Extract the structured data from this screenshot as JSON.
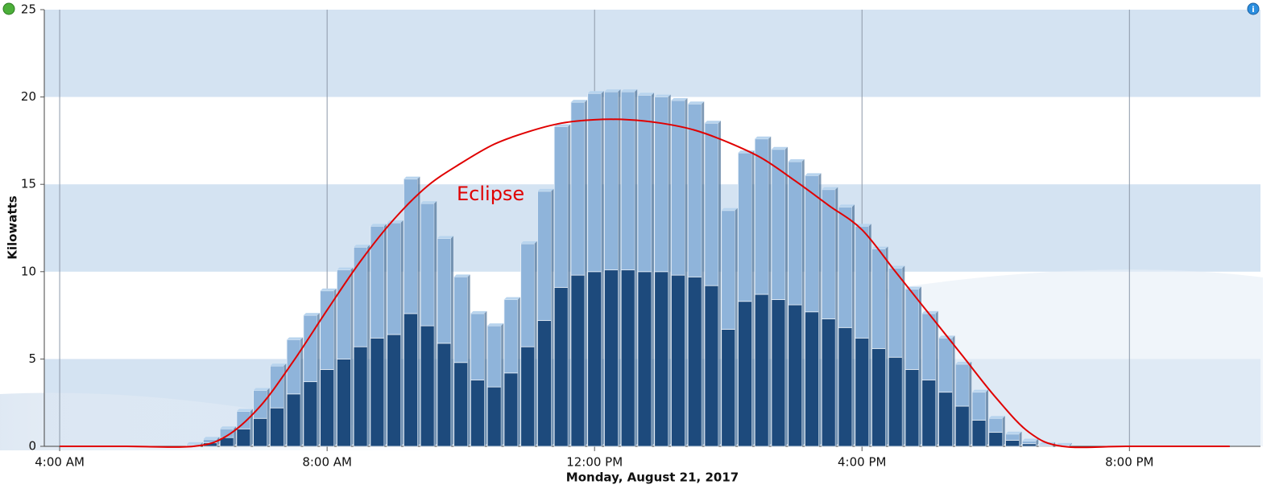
{
  "chart_data": {
    "type": "bar",
    "stacked": true,
    "x_axis_title": "Monday, August 21, 2017",
    "y_axis_title": "Kilowatts",
    "annotation": "Eclipse",
    "xlim": [
      3.77,
      21.96
    ],
    "xticks": [
      {
        "value": 4,
        "label": "4:00 AM"
      },
      {
        "value": 8,
        "label": "8:00 AM"
      },
      {
        "value": 12,
        "label": "12:00 PM"
      },
      {
        "value": 16,
        "label": "4:00 PM"
      },
      {
        "value": 20,
        "label": "8:00 PM"
      }
    ],
    "ylim": [
      0,
      25
    ],
    "yticks": [
      0,
      5,
      10,
      15,
      20,
      25
    ],
    "grid": true,
    "x": [
      6,
      6.25,
      6.5,
      6.75,
      7,
      7.25,
      7.5,
      7.75,
      8,
      8.25,
      8.5,
      8.75,
      9,
      9.25,
      9.5,
      9.75,
      10,
      10.25,
      10.5,
      10.75,
      11,
      11.25,
      11.5,
      11.75,
      12,
      12.25,
      12.5,
      12.75,
      13,
      13.25,
      13.5,
      13.75,
      14,
      14.25,
      14.5,
      14.75,
      15,
      15.25,
      15.5,
      15.75,
      16,
      16.25,
      16.5,
      16.75,
      17,
      17.25,
      17.5,
      17.75,
      18,
      18.25,
      18.5,
      18.75,
      19
    ],
    "series": [
      {
        "color": "#1d4a7c",
        "values": [
          0.05,
          0.2,
          0.5,
          1.0,
          1.6,
          2.2,
          3.0,
          3.7,
          4.4,
          5.0,
          5.7,
          6.2,
          6.4,
          7.6,
          6.9,
          5.9,
          4.8,
          3.8,
          3.4,
          4.2,
          5.7,
          7.2,
          9.1,
          9.8,
          10.0,
          10.1,
          10.1,
          10.0,
          10.0,
          9.8,
          9.7,
          9.2,
          6.7,
          8.3,
          8.7,
          8.4,
          8.1,
          7.7,
          7.3,
          6.8,
          6.2,
          5.6,
          5.1,
          4.4,
          3.8,
          3.1,
          2.3,
          1.5,
          0.8,
          0.35,
          0.15,
          0.05,
          0.02
        ]
      },
      {
        "color": "#8fb4da",
        "values": [
          0.05,
          0.2,
          0.5,
          1.0,
          1.6,
          2.4,
          3.1,
          3.8,
          4.5,
          5.1,
          5.7,
          6.4,
          6.4,
          7.7,
          7.0,
          6.0,
          4.9,
          3.8,
          3.5,
          4.2,
          5.9,
          7.4,
          9.2,
          9.9,
          10.2,
          10.2,
          10.2,
          10.1,
          10.0,
          10.0,
          9.9,
          9.3,
          6.8,
          8.5,
          8.9,
          8.6,
          8.2,
          7.8,
          7.4,
          6.9,
          6.4,
          5.7,
          5.1,
          4.6,
          3.8,
          3.1,
          2.4,
          1.6,
          0.8,
          0.35,
          0.15,
          0.05,
          0.03
        ]
      }
    ],
    "line": {
      "color": "#e00000",
      "x": [
        4,
        5,
        6,
        6.5,
        7,
        7.5,
        8,
        8.5,
        9,
        9.5,
        10,
        10.5,
        11,
        11.5,
        12,
        12.5,
        13,
        13.5,
        14,
        14.5,
        15,
        15.5,
        16,
        16.5,
        17,
        17.5,
        18,
        18.5,
        19,
        20,
        21.5
      ],
      "values": [
        0,
        0,
        0,
        0.6,
        2.3,
        4.9,
        7.8,
        10.6,
        13.0,
        14.9,
        16.2,
        17.3,
        18.0,
        18.5,
        18.7,
        18.7,
        18.5,
        18.1,
        17.4,
        16.5,
        15.2,
        13.8,
        12.4,
        10.0,
        7.6,
        5.2,
        2.8,
        0.8,
        0,
        0,
        0
      ]
    }
  }
}
